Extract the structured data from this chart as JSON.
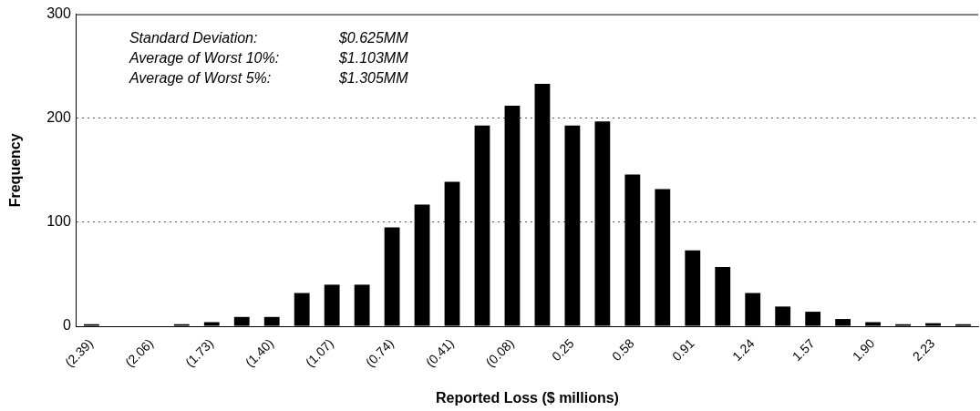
{
  "chart_data": {
    "type": "bar",
    "xlabel": "Reported Loss ($ millions)",
    "ylabel": "Frequency",
    "categories": [
      "(2.39)",
      null,
      "(2.06)",
      null,
      "(1.73)",
      null,
      "(1.40)",
      null,
      "(1.07)",
      null,
      "(0.74)",
      null,
      "(0.41)",
      null,
      "(0.08)",
      null,
      "0.25",
      null,
      "0.58",
      null,
      "0.91",
      null,
      "1.24",
      null,
      "1.57",
      null,
      "1.90",
      null,
      "2.23",
      null
    ],
    "values": [
      2,
      0,
      0,
      2,
      4,
      9,
      9,
      32,
      40,
      40,
      95,
      117,
      139,
      193,
      212,
      233,
      193,
      197,
      146,
      132,
      73,
      57,
      32,
      19,
      14,
      7,
      4,
      2,
      3,
      2
    ],
    "color": "#000000",
    "ylim": [
      0,
      300
    ],
    "yticks": [
      0,
      100,
      200,
      300
    ],
    "grid": "y",
    "legend": false,
    "annotations": [
      "Standard Deviation:",
      "$0.625MM",
      "Average of Worst 10%:",
      "$1.103MM",
      "Average of Worst 5%:",
      "$1.305MM"
    ]
  }
}
